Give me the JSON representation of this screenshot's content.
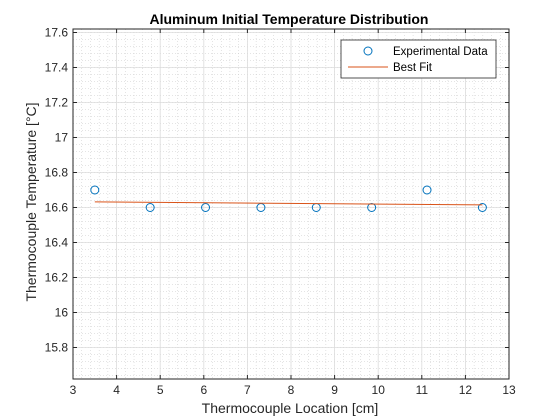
{
  "chart_data": {
    "type": "scatter",
    "title": "Aluminum Initial Temperature Distribution",
    "xlabel": "Thermocouple Location [cm]",
    "ylabel": "Thermocouple Temperature [°C]",
    "xlim": [
      3,
      13
    ],
    "ylim": [
      15.62,
      17.62
    ],
    "xticks": [
      3,
      4,
      5,
      6,
      7,
      8,
      9,
      10,
      11,
      12,
      13
    ],
    "yticks": [
      15.8,
      16,
      16.2,
      16.4,
      16.6,
      16.8,
      17,
      17.2,
      17.4,
      17.6
    ],
    "grid": true,
    "minor_grid": true,
    "legend_position": "top-right",
    "series": [
      {
        "name": "Experimental Data",
        "kind": "markers",
        "marker": "circle",
        "color": "#0072BD",
        "x": [
          3.5,
          4.77,
          6.04,
          7.31,
          8.58,
          9.85,
          11.12,
          12.39
        ],
        "y": [
          16.7,
          16.6,
          16.6,
          16.6,
          16.6,
          16.6,
          16.7,
          16.6
        ]
      },
      {
        "name": "Best Fit",
        "kind": "line",
        "color": "#D95319",
        "x": [
          3.5,
          12.39
        ],
        "y": [
          16.632,
          16.615
        ]
      }
    ]
  }
}
